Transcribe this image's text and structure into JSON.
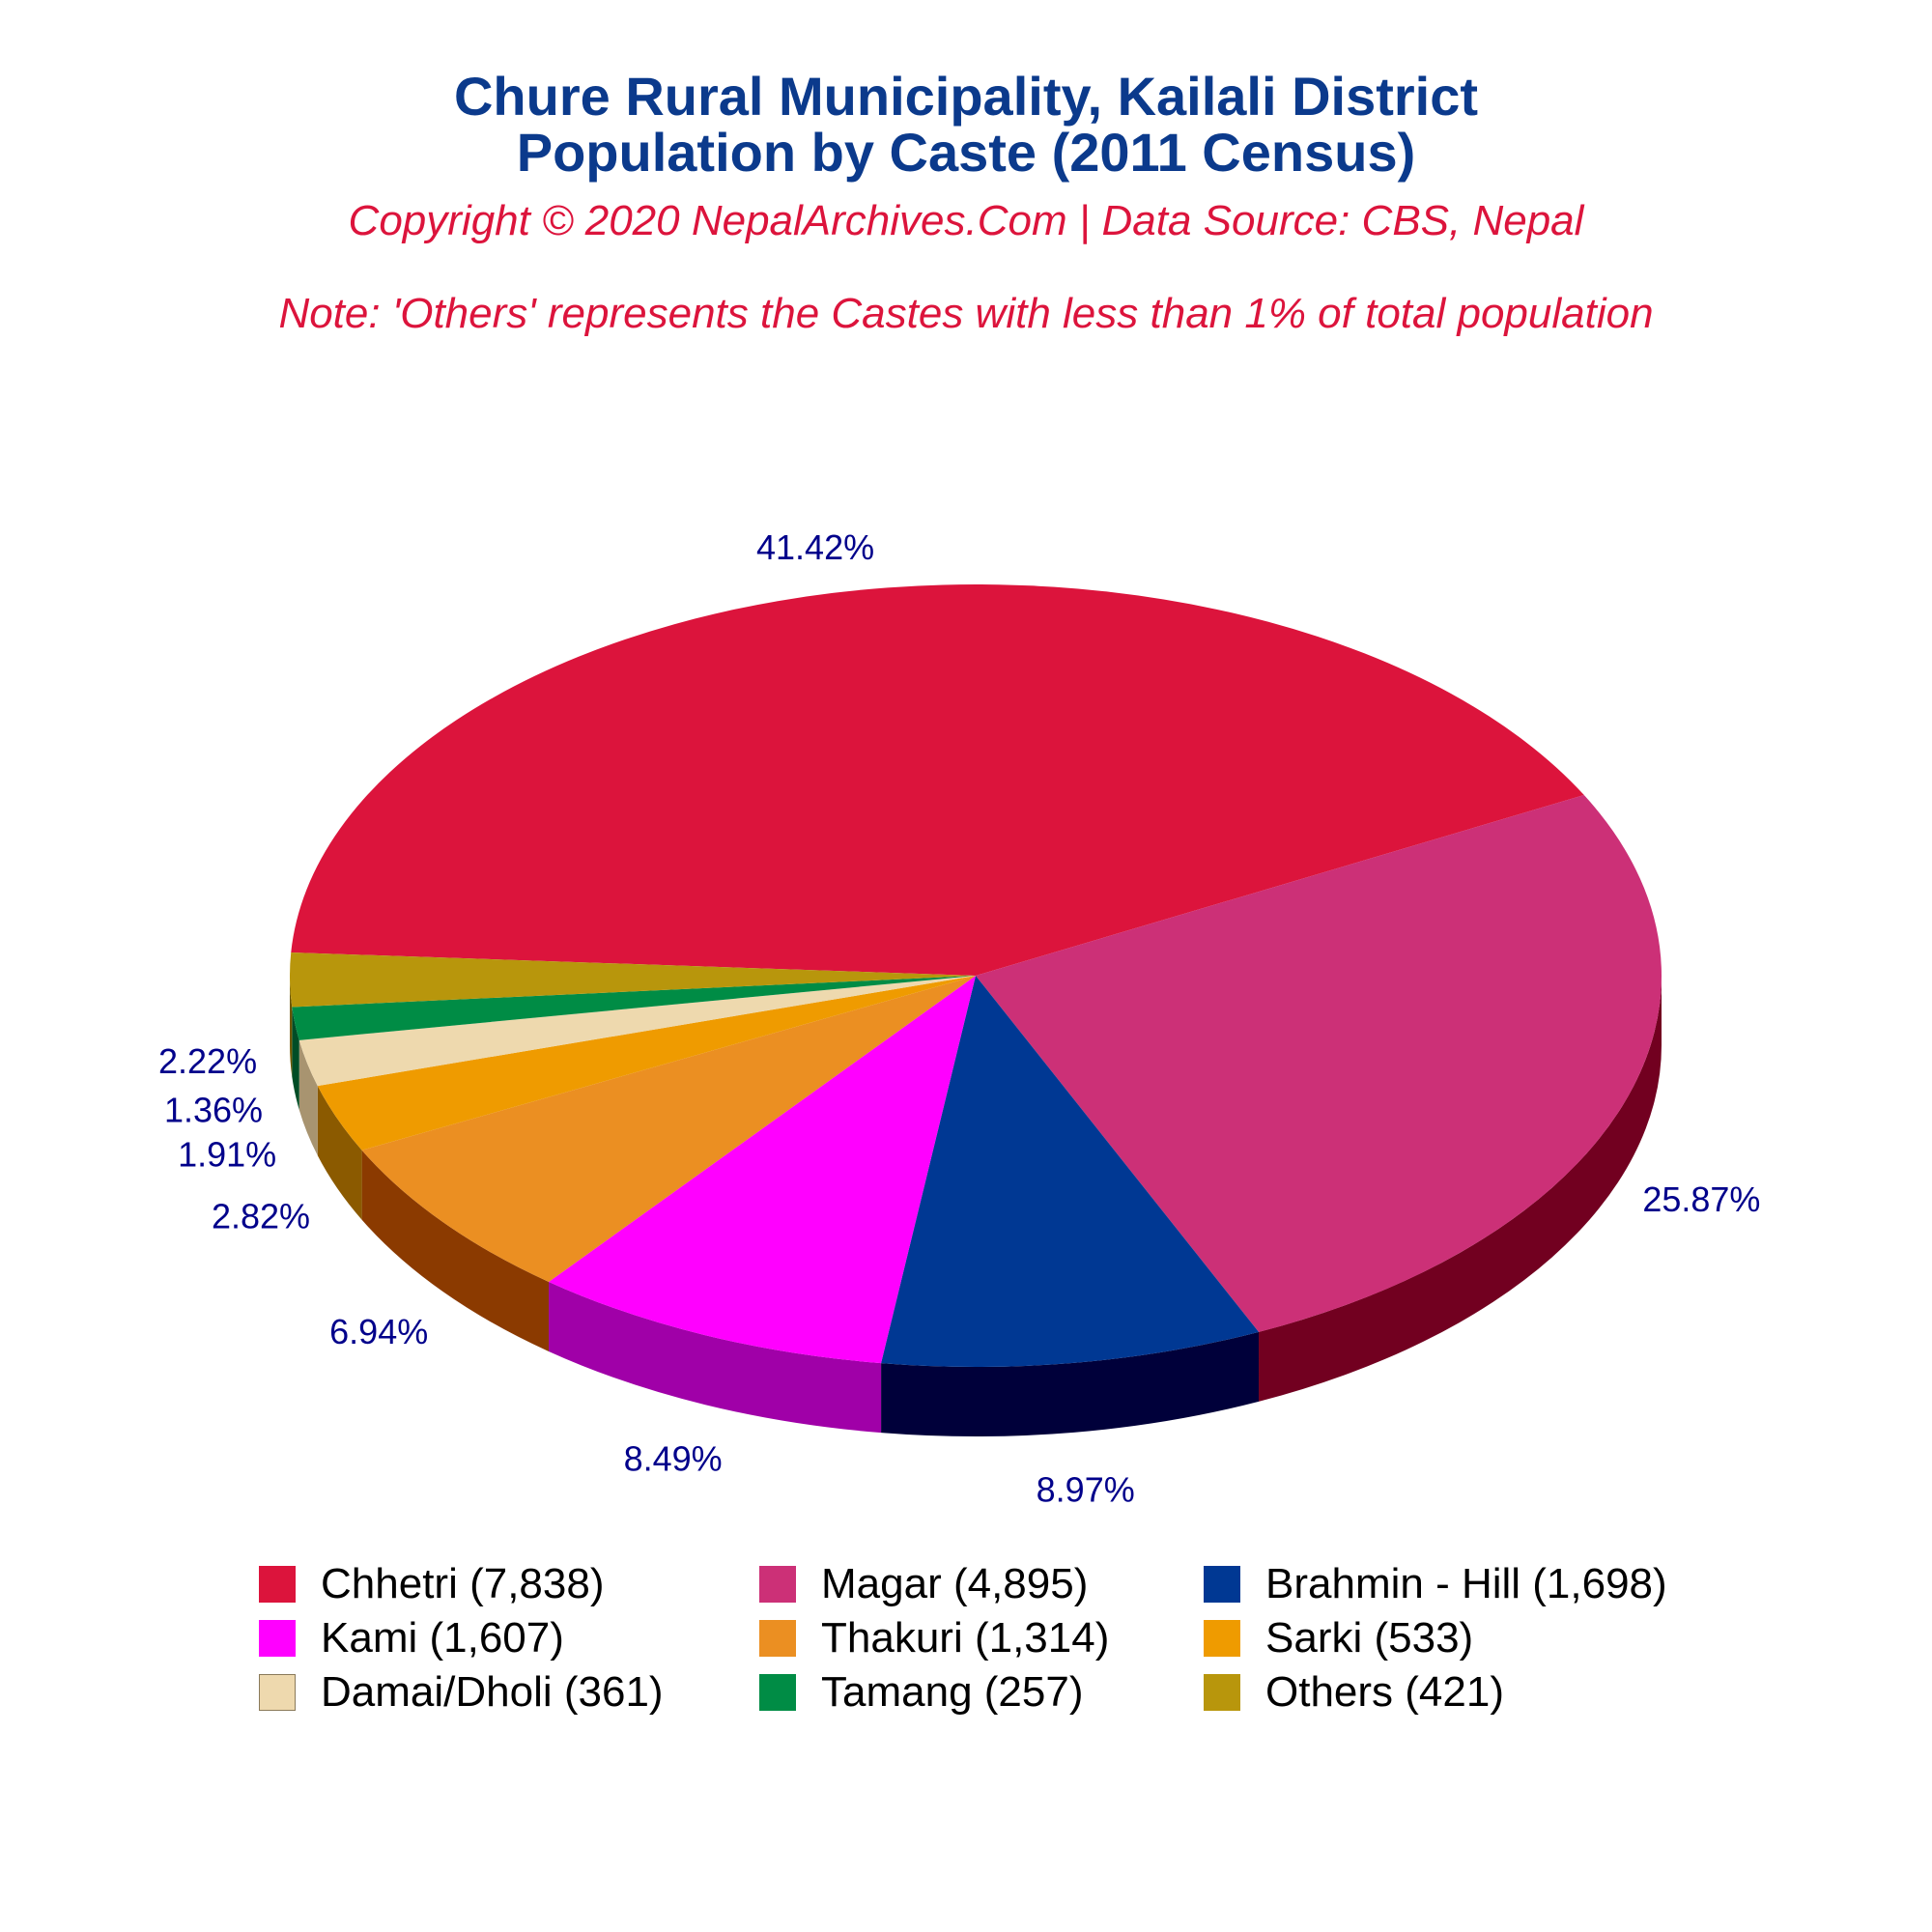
{
  "title_line1": "Chure Rural Municipality, Kailali District",
  "title_line2": "Population by Caste (2011 Census)",
  "copyright": "Copyright © 2020 NepalArchives.Com | Data Source: CBS, Nepal",
  "note": "Note: 'Others' represents the Castes with less than 1% of total population",
  "chart_data": {
    "type": "pie",
    "style": "3d",
    "legend_position": "bottom",
    "slices": [
      {
        "label": "Chhetri (7,838)",
        "name": "Chhetri",
        "value": 7838,
        "percent_label": "41.42%",
        "color": "#dc143c",
        "side_color": "#720020"
      },
      {
        "label": "Magar (4,895)",
        "name": "Magar",
        "value": 4895,
        "percent_label": "25.87%",
        "color": "#cc3077",
        "side_color": "#720020"
      },
      {
        "label": "Brahmin - Hill (1,698)",
        "name": "Brahmin - Hill",
        "value": 1698,
        "percent_label": "8.97%",
        "color": "#003893",
        "side_color": "#00003a"
      },
      {
        "label": "Kami (1,607)",
        "name": "Kami",
        "value": 1607,
        "percent_label": "8.49%",
        "color": "#ff00ff",
        "side_color": "#a000a8"
      },
      {
        "label": "Thakuri (1,314)",
        "name": "Thakuri",
        "value": 1314,
        "percent_label": "6.94%",
        "color": "#eb8f22",
        "side_color": "#8b3a00"
      },
      {
        "label": "Sarki (533)",
        "name": "Sarki",
        "value": 533,
        "percent_label": "2.82%",
        "color": "#ef9b00",
        "side_color": "#8b5a00"
      },
      {
        "label": "Damai/Dholi (361)",
        "name": "Damai/Dholi",
        "value": 361,
        "percent_label": "1.91%",
        "color": "#eed9ae",
        "side_color": "#a89470"
      },
      {
        "label": "Tamang (257)",
        "name": "Tamang",
        "value": 257,
        "percent_label": "1.36%",
        "color": "#008c45",
        "side_color": "#004d26"
      },
      {
        "label": "Others (421)",
        "name": "Others",
        "value": 421,
        "percent_label": "2.22%",
        "color": "#b8960c",
        "side_color": "#6b5600"
      }
    ]
  }
}
